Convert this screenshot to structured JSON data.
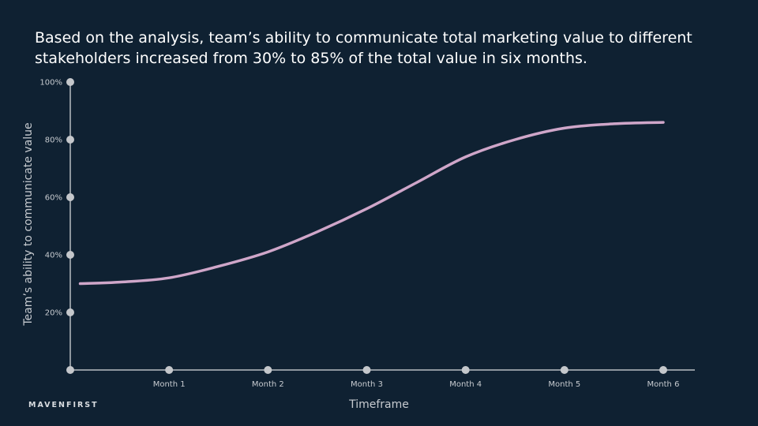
{
  "slide": {
    "title": "Based on the analysis, team’s ability to communicate total marketing value to different stakeholders increased from 30% to 85% of the total value in six months.",
    "brand": "MAVENFIRST"
  },
  "chart_data": {
    "type": "line",
    "title": "",
    "xlabel": "Timeframe",
    "ylabel": "Team’s ability to communicate value",
    "categories": [
      "Month 1",
      "Month 2",
      "Month 3",
      "Month 4",
      "Month 5",
      "Month 6"
    ],
    "y_ticks": [
      "20%",
      "40%",
      "60%",
      "80%",
      "100%"
    ],
    "ylim": [
      0,
      100
    ],
    "xlim": [
      0,
      6
    ],
    "grid": false,
    "colors": {
      "line": "#cfa6c9",
      "axis": "#8e969e",
      "marker": "#c4c7cb"
    },
    "series": [
      {
        "x": [
          0.1,
          0.5,
          1,
          1.5,
          2,
          2.5,
          3,
          3.5,
          4,
          4.5,
          5,
          5.5,
          6
        ],
        "values": [
          30,
          30.5,
          32,
          36,
          41,
          48,
          56,
          65,
          74,
          80,
          84,
          85.5,
          86
        ]
      }
    ]
  }
}
